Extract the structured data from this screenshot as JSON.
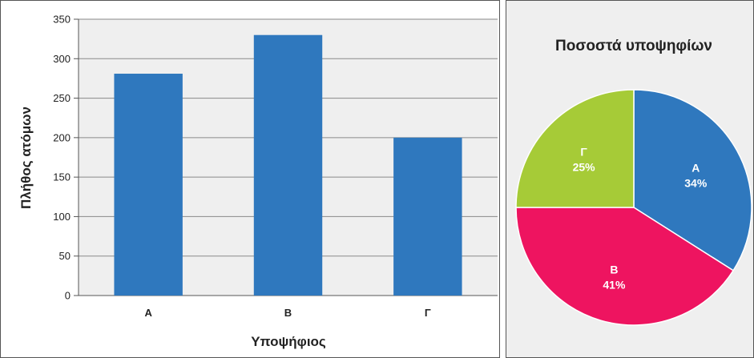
{
  "chart_data": [
    {
      "type": "bar",
      "categories": [
        "Α",
        "Β",
        "Γ"
      ],
      "values": [
        281,
        330,
        200
      ],
      "xlabel": "Υποψήφιος",
      "ylabel": "Πλήθος ατόμων",
      "ylim": [
        0,
        350
      ],
      "yticks": [
        0,
        50,
        100,
        150,
        200,
        250,
        300,
        350
      ],
      "grid": true,
      "colors": {
        "bar": "#2f78be",
        "grid": "#8a8a8a",
        "background": "#efefef"
      }
    },
    {
      "type": "pie",
      "title": "Ποσοστά υποψηφίων",
      "slices": [
        {
          "label": "Α",
          "percent_label": "34%",
          "value": 34,
          "color": "#2f78be"
        },
        {
          "label": "Β",
          "percent_label": "41%",
          "value": 41,
          "color": "#ee1460"
        },
        {
          "label": "Γ",
          "percent_label": "25%",
          "value": 25,
          "color": "#a6cb37"
        }
      ],
      "colors": {
        "background": "#efefef",
        "slice_border": "#ffffff"
      }
    }
  ]
}
